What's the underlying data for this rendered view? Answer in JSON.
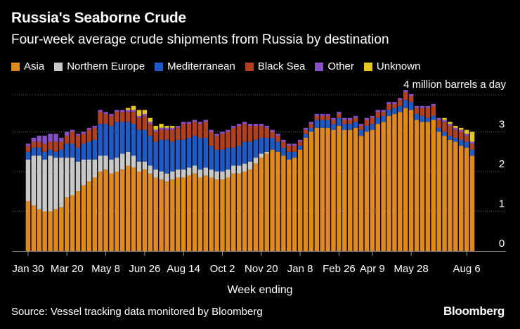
{
  "header": {
    "title": "Russia's Seaborne Crude",
    "subtitle": "Four-week average crude shipments from Russia by destination"
  },
  "legend": [
    {
      "label": "Asia",
      "color": "#e08a1e"
    },
    {
      "label": "Northern Europe",
      "color": "#c8c8c8"
    },
    {
      "label": "Mediterranean",
      "color": "#1f5bc6"
    },
    {
      "label": "Black Sea",
      "color": "#b2401f"
    },
    {
      "label": "Other",
      "color": "#8a4fc6"
    },
    {
      "label": "Unknown",
      "color": "#e5c81a"
    }
  ],
  "footer": {
    "source": "Source: Vessel tracking data monitored by Bloomberg",
    "brand": "Bloomberg"
  },
  "chart_data": {
    "type": "bar",
    "stacked": true,
    "unit_label": "4 million barrels a day",
    "xlabel": "Week ending",
    "ylabel": "",
    "ylim": [
      0,
      4
    ],
    "yticks": [
      0,
      1,
      2,
      3
    ],
    "grid": true,
    "x_tick_labels": [
      {
        "index": 0,
        "label": "Jan 30"
      },
      {
        "index": 7,
        "label": "Mar 20"
      },
      {
        "index": 14,
        "label": "May 8"
      },
      {
        "index": 21,
        "label": "Jun 26"
      },
      {
        "index": 28,
        "label": "Aug 14"
      },
      {
        "index": 35,
        "label": "Oct 2"
      },
      {
        "index": 42,
        "label": "Nov 20"
      },
      {
        "index": 49,
        "label": "Jan 8"
      },
      {
        "index": 56,
        "label": "Feb 26"
      },
      {
        "index": 62,
        "label": "Apr 9"
      },
      {
        "index": 69,
        "label": "May 28"
      },
      {
        "index": 79,
        "label": "Aug 6"
      }
    ],
    "series": [
      {
        "name": "Asia",
        "color": "#e08a1e",
        "values": [
          1.25,
          1.15,
          1.05,
          1.0,
          1.0,
          1.05,
          1.1,
          1.35,
          1.4,
          1.5,
          1.65,
          1.75,
          1.85,
          2.0,
          2.05,
          1.95,
          2.0,
          2.05,
          2.15,
          2.1,
          2.0,
          2.05,
          1.95,
          1.85,
          1.8,
          1.75,
          1.8,
          1.85,
          1.85,
          1.9,
          1.95,
          1.85,
          1.9,
          1.85,
          1.8,
          1.8,
          1.85,
          1.95,
          1.95,
          2.0,
          2.05,
          2.2,
          2.35,
          2.45,
          2.55,
          2.5,
          2.4,
          2.3,
          2.35,
          2.55,
          2.85,
          3.0,
          3.1,
          3.1,
          3.1,
          3.05,
          3.15,
          3.05,
          3.05,
          3.1,
          2.9,
          3.0,
          3.05,
          3.2,
          3.25,
          3.4,
          3.45,
          3.5,
          3.6,
          3.55,
          3.3,
          3.25,
          3.25,
          3.3,
          3.0,
          2.9,
          2.8,
          2.75,
          2.65,
          2.6,
          2.4
        ]
      },
      {
        "name": "Northern Europe",
        "color": "#c8c8c8",
        "values": [
          1.05,
          1.25,
          1.35,
          1.3,
          1.4,
          1.3,
          1.25,
          1.0,
          0.95,
          0.75,
          0.65,
          0.55,
          0.45,
          0.4,
          0.35,
          0.35,
          0.35,
          0.4,
          0.35,
          0.3,
          0.25,
          0.2,
          0.2,
          0.2,
          0.2,
          0.2,
          0.2,
          0.2,
          0.2,
          0.2,
          0.2,
          0.2,
          0.2,
          0.2,
          0.2,
          0.2,
          0.2,
          0.2,
          0.2,
          0.2,
          0.2,
          0.15,
          0.1,
          0.05,
          0.0,
          0.0,
          0.0,
          0.0,
          0.0,
          0.0,
          0.0,
          0.0,
          0.0,
          0.0,
          0.0,
          0.0,
          0.0,
          0.0,
          0.0,
          0.0,
          0.0,
          0.0,
          0.0,
          0.0,
          0.0,
          0.0,
          0.0,
          0.0,
          0.0,
          0.0,
          0.0,
          0.0,
          0.0,
          0.0,
          0.0,
          0.0,
          0.0,
          0.0,
          0.0,
          0.0,
          0.0
        ]
      },
      {
        "name": "Mediterranean",
        "color": "#1f5bc6",
        "values": [
          0.2,
          0.2,
          0.2,
          0.2,
          0.15,
          0.15,
          0.2,
          0.35,
          0.35,
          0.35,
          0.4,
          0.45,
          0.5,
          0.8,
          0.8,
          0.85,
          0.9,
          0.8,
          0.75,
          0.8,
          0.8,
          0.8,
          0.75,
          0.7,
          0.8,
          0.85,
          0.75,
          0.75,
          0.75,
          0.75,
          0.75,
          0.8,
          0.75,
          0.6,
          0.55,
          0.55,
          0.55,
          0.45,
          0.5,
          0.55,
          0.5,
          0.45,
          0.4,
          0.35,
          0.3,
          0.25,
          0.2,
          0.2,
          0.15,
          0.1,
          0.1,
          0.1,
          0.2,
          0.2,
          0.2,
          0.15,
          0.2,
          0.15,
          0.15,
          0.15,
          0.15,
          0.15,
          0.15,
          0.15,
          0.15,
          0.15,
          0.15,
          0.15,
          0.2,
          0.2,
          0.15,
          0.15,
          0.1,
          0.1,
          0.1,
          0.1,
          0.1,
          0.1,
          0.15,
          0.15,
          0.15
        ]
      },
      {
        "name": "Black Sea",
        "color": "#b2401f",
        "values": [
          0.15,
          0.15,
          0.15,
          0.2,
          0.2,
          0.25,
          0.2,
          0.2,
          0.3,
          0.3,
          0.25,
          0.3,
          0.3,
          0.3,
          0.25,
          0.25,
          0.25,
          0.25,
          0.25,
          0.3,
          0.3,
          0.35,
          0.3,
          0.25,
          0.25,
          0.25,
          0.3,
          0.3,
          0.4,
          0.35,
          0.35,
          0.35,
          0.4,
          0.35,
          0.35,
          0.4,
          0.4,
          0.5,
          0.5,
          0.45,
          0.4,
          0.35,
          0.3,
          0.25,
          0.15,
          0.15,
          0.15,
          0.15,
          0.15,
          0.1,
          0.1,
          0.1,
          0.1,
          0.1,
          0.1,
          0.1,
          0.1,
          0.1,
          0.1,
          0.1,
          0.1,
          0.15,
          0.15,
          0.15,
          0.1,
          0.15,
          0.1,
          0.15,
          0.2,
          0.15,
          0.15,
          0.2,
          0.25,
          0.25,
          0.2,
          0.25,
          0.25,
          0.2,
          0.2,
          0.15,
          0.15
        ]
      },
      {
        "name": "Other",
        "color": "#8a4fc6",
        "values": [
          0.05,
          0.1,
          0.15,
          0.2,
          0.2,
          0.2,
          0.1,
          0.1,
          0.05,
          0.05,
          0.05,
          0.05,
          0.05,
          0.05,
          0.05,
          0.05,
          0.05,
          0.05,
          0.05,
          0.05,
          0.05,
          0.05,
          0.05,
          0.05,
          0.05,
          0.05,
          0.05,
          0.05,
          0.05,
          0.05,
          0.05,
          0.05,
          0.05,
          0.05,
          0.05,
          0.05,
          0.05,
          0.05,
          0.05,
          0.05,
          0.05,
          0.05,
          0.05,
          0.05,
          0.05,
          0.05,
          0.05,
          0.05,
          0.05,
          0.05,
          0.05,
          0.05,
          0.05,
          0.05,
          0.05,
          0.05,
          0.05,
          0.05,
          0.05,
          0.05,
          0.05,
          0.05,
          0.05,
          0.05,
          0.05,
          0.05,
          0.05,
          0.05,
          0.05,
          0.05,
          0.05,
          0.05,
          0.05,
          0.05,
          0.05,
          0.05,
          0.05,
          0.05,
          0.05,
          0.05,
          0.05
        ]
      },
      {
        "name": "Unknown",
        "color": "#e5c81a",
        "values": [
          0.0,
          0.0,
          0.0,
          0.0,
          0.0,
          0.0,
          0.0,
          0.0,
          0.0,
          0.0,
          0.0,
          0.0,
          0.0,
          0.0,
          0.0,
          0.0,
          0.0,
          0.0,
          0.05,
          0.1,
          0.15,
          0.1,
          0.1,
          0.1,
          0.1,
          0.05,
          0.05,
          0.0,
          0.0,
          0.0,
          0.0,
          0.0,
          0.0,
          0.0,
          0.0,
          0.0,
          0.0,
          0.0,
          0.0,
          0.0,
          0.0,
          0.0,
          0.0,
          0.0,
          0.0,
          0.0,
          0.0,
          0.0,
          0.0,
          0.0,
          0.0,
          0.0,
          0.0,
          0.0,
          0.0,
          0.0,
          0.0,
          0.0,
          0.0,
          0.0,
          0.0,
          0.0,
          0.0,
          0.0,
          0.0,
          0.0,
          0.0,
          0.0,
          0.0,
          0.0,
          0.0,
          0.0,
          0.0,
          0.0,
          0.0,
          0.05,
          0.05,
          0.05,
          0.05,
          0.1,
          0.25
        ]
      }
    ]
  }
}
